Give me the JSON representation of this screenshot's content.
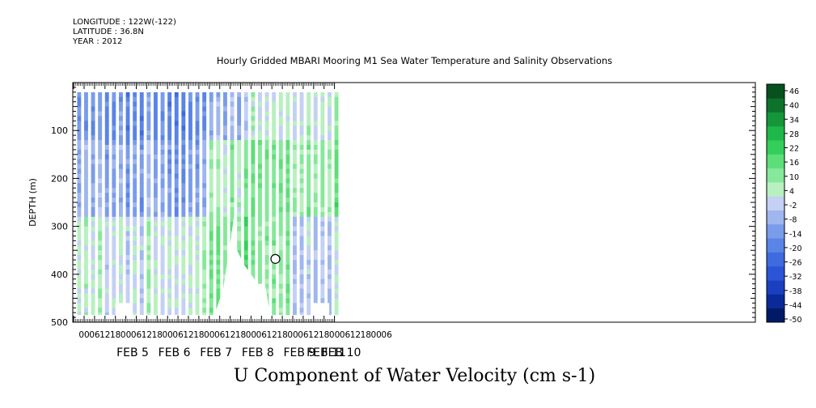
{
  "header": {
    "longitude": "LONGITUDE : 122W(-122)",
    "latitude": "LATITUDE : 36.8N",
    "year": "YEAR : 2012"
  },
  "title": "Hourly Gridded MBARI Mooring M1 Sea Water Temperature and Salinity Observations",
  "caption": "U Component of Water Velocity (cm s-1)",
  "chart_data": {
    "type": "heatmap",
    "title": "Hourly Gridded MBARI Mooring M1 Sea Water Temperature and Salinity Observations",
    "xlabel": "",
    "ylabel": "DEPTH (m)",
    "colorbar_label": "U Component of Water Velocity (cm s-1)",
    "ylim": [
      500,
      0
    ],
    "y_ticks": [
      100,
      200,
      300,
      400,
      500
    ],
    "x_hour_ticks": [
      "00",
      "06",
      "12",
      "18",
      "00",
      "06",
      "12",
      "18",
      "00",
      "06",
      "12",
      "18",
      "00",
      "06",
      "12",
      "18",
      "00",
      "06",
      "12",
      "18",
      "00",
      "06",
      "12",
      "18",
      "00",
      "06",
      "12",
      "18",
      "00",
      "06"
    ],
    "x_day_labels": [
      "FEB 5",
      "FEB 6",
      "FEB 7",
      "FEB 8",
      "FEB 9",
      "FEB 10",
      "FEB 11"
    ],
    "colorbar_levels": [
      -50,
      -44,
      -38,
      -32,
      -26,
      -20,
      -14,
      -8,
      -2,
      4,
      10,
      16,
      22,
      28,
      34,
      40,
      46
    ],
    "colorbar_labels": [
      "46",
      "40",
      "34",
      "28",
      "22",
      "16",
      "10",
      "4",
      "-2",
      "-8",
      "-14",
      "-20",
      "-26",
      "-32",
      "-38",
      "-44",
      "-50"
    ],
    "data_depth_range_m": [
      20,
      485
    ],
    "data_time_range": [
      "FEB 4 20:00",
      "FEB 11 04:00"
    ],
    "u_velocity_summary_cm_s": [
      {
        "period": "FEB 5",
        "upper": -12,
        "mid": -6,
        "deep": 6
      },
      {
        "period": "FEB 6",
        "upper": -14,
        "mid": -8,
        "deep": 4
      },
      {
        "period": "FEB 7",
        "upper": -16,
        "mid": -10,
        "deep": 6
      },
      {
        "period": "FEB 8",
        "upper": -4,
        "mid": 10,
        "deep": 16
      },
      {
        "period": "FEB 9",
        "upper": 4,
        "mid": 14,
        "deep": 12
      },
      {
        "period": "FEB 10",
        "upper": 6,
        "mid": 12,
        "deep": 0
      },
      {
        "period": "FEB 11",
        "upper": 8,
        "mid": 14,
        "deep": 0
      }
    ]
  }
}
